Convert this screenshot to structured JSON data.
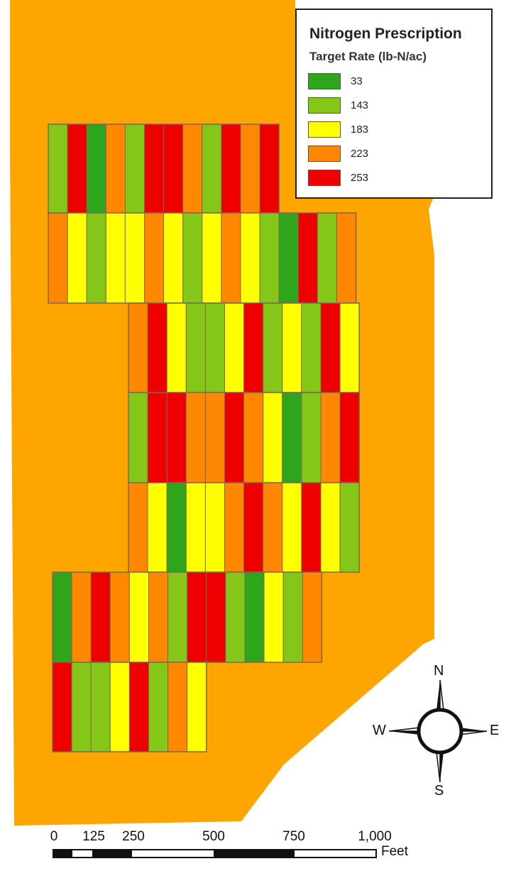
{
  "colors": {
    "field_background": "#FFA500",
    "cell_border": "#7a6a55",
    "rate_33": "#2FA51B",
    "rate_143": "#85C716",
    "rate_183": "#FFFF00",
    "rate_223": "#FF8800",
    "rate_253": "#EE0000"
  },
  "legend": {
    "title": "Nitrogen Prescription",
    "subtitle": "Target Rate (lb-N/ac)",
    "items": [
      {
        "label": "33",
        "color": "#2FA51B"
      },
      {
        "label": "143",
        "color": "#85C716"
      },
      {
        "label": "183",
        "color": "#FFFF00"
      },
      {
        "label": "223",
        "color": "#FF8800"
      },
      {
        "label": "253",
        "color": "#EE0000"
      }
    ]
  },
  "grid_rates": [
    [
      143,
      253,
      33,
      223,
      143,
      253,
      253,
      223,
      143,
      253,
      223,
      253
    ],
    [
      223,
      183,
      143,
      183,
      183,
      223,
      183,
      143,
      183,
      223,
      183,
      143,
      33,
      253,
      143,
      223
    ],
    [
      223,
      253,
      183,
      143,
      143,
      183,
      253,
      143,
      183,
      143,
      253,
      183
    ],
    [
      143,
      253,
      253,
      223,
      223,
      253,
      223,
      183,
      33,
      143,
      223,
      253
    ],
    [
      223,
      183,
      33,
      183,
      183,
      223,
      253,
      223,
      183,
      253,
      183,
      143
    ],
    [
      33,
      223,
      253,
      223,
      183,
      223,
      143,
      253,
      253,
      143,
      33,
      183,
      143,
      223
    ],
    [
      253,
      143,
      143,
      183,
      253,
      143,
      223,
      183
    ]
  ],
  "compass": {
    "n": "N",
    "s": "S",
    "e": "E",
    "w": "W"
  },
  "scale_bar": {
    "ticks": [
      "0",
      "125",
      "250",
      "500",
      "750",
      "1,000"
    ],
    "units": "Feet"
  }
}
